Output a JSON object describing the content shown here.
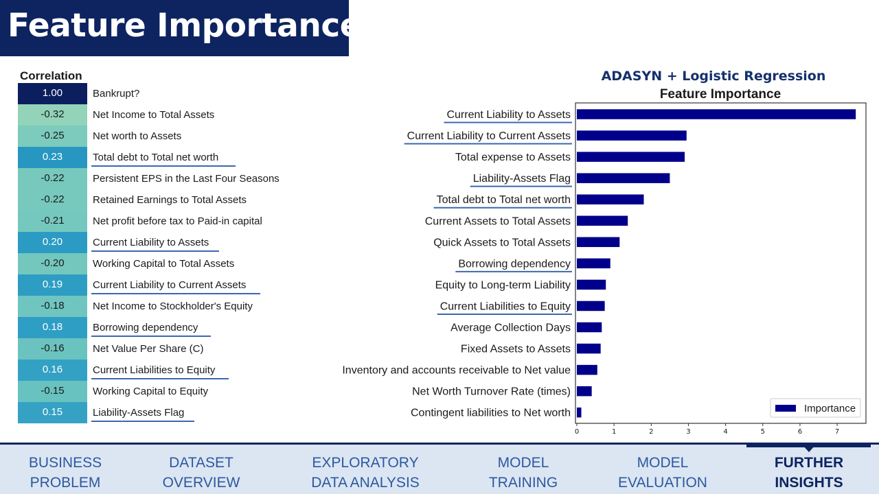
{
  "slide": {
    "title": "Feature Importance"
  },
  "correlation": {
    "header": "Correlation",
    "rows": [
      {
        "value": "1.00",
        "label": "Bankrupt?",
        "underlined": false,
        "color": "#0b1f5e",
        "text_color": "#ffffff"
      },
      {
        "value": "-0.32",
        "label": "Net Income to Total Assets",
        "underlined": false,
        "color": "#92d3b9",
        "text_color": "#1a1a1a"
      },
      {
        "value": "-0.25",
        "label": "Net worth to Assets",
        "underlined": false,
        "color": "#7ccbbc",
        "text_color": "#1a1a1a"
      },
      {
        "value": "0.23",
        "label": "Total debt to Total net worth",
        "underlined": true,
        "color": "#2797c1",
        "text_color": "#ffffff"
      },
      {
        "value": "-0.22",
        "label": "Persistent EPS in the Last Four Seasons",
        "underlined": false,
        "color": "#77c9bd",
        "text_color": "#1a1a1a"
      },
      {
        "value": "-0.22",
        "label": "Retained Earnings to Total Assets",
        "underlined": false,
        "color": "#77c9bd",
        "text_color": "#1a1a1a"
      },
      {
        "value": "-0.21",
        "label": "Net profit before tax to Paid-in capital",
        "underlined": false,
        "color": "#75c8bd",
        "text_color": "#1a1a1a"
      },
      {
        "value": "0.20",
        "label": "Current Liability to Assets",
        "underlined": true,
        "color": "#2b9bc3",
        "text_color": "#ffffff"
      },
      {
        "value": "-0.20",
        "label": "Working Capital to Total Assets",
        "underlined": false,
        "color": "#73c7bd",
        "text_color": "#1a1a1a"
      },
      {
        "value": "0.19",
        "label": "Current Liability to Current Assets",
        "underlined": true,
        "color": "#2d9dc3",
        "text_color": "#ffffff"
      },
      {
        "value": "-0.18",
        "label": "Net Income to Stockholder's Equity",
        "underlined": false,
        "color": "#6fc5bf",
        "text_color": "#1a1a1a"
      },
      {
        "value": "0.18",
        "label": "Borrowing dependency",
        "underlined": true,
        "color": "#2f9ec4",
        "text_color": "#ffffff"
      },
      {
        "value": "-0.16",
        "label": "Net Value Per Share (C)",
        "underlined": false,
        "color": "#6bc3bf",
        "text_color": "#1a1a1a"
      },
      {
        "value": "0.16",
        "label": "Current Liabilities to Equity",
        "underlined": true,
        "color": "#33a1c4",
        "text_color": "#ffffff"
      },
      {
        "value": "-0.15",
        "label": "Working Capital to Equity",
        "underlined": false,
        "color": "#68c2c0",
        "text_color": "#1a1a1a"
      },
      {
        "value": "0.15",
        "label": "Liability-Assets Flag",
        "underlined": true,
        "color": "#35a2c4",
        "text_color": "#ffffff"
      }
    ]
  },
  "chart_data": {
    "type": "bar",
    "orientation": "horizontal",
    "title": "ADASYN + Logistic Regression",
    "subtitle": "Feature Importance",
    "categories": [
      "Current Liability to Assets",
      "Current Liability to Current Assets",
      "Total expense to Assets",
      "Liability-Assets Flag",
      "Total debt to Total net worth",
      "Current Assets to Total Assets",
      "Quick Assets to Total Assets",
      "Borrowing dependency",
      "Equity to Long-term Liability",
      "Current Liabilities to Equity",
      "Average Collection Days",
      "Fixed Assets to Assets",
      "Inventory and accounts receivable to Net value",
      "Net Worth Turnover Rate (times)",
      "Contingent liabilities to Net worth"
    ],
    "underlined_categories": [
      "Current Liability to Assets",
      "Current Liability to Current Assets",
      "Liability-Assets Flag",
      "Total debt to Total net worth",
      "Borrowing dependency",
      "Current Liabilities to Equity"
    ],
    "series": [
      {
        "name": "Importance",
        "values": [
          7.5,
          2.95,
          2.9,
          2.5,
          1.8,
          1.37,
          1.15,
          0.9,
          0.78,
          0.75,
          0.67,
          0.64,
          0.55,
          0.4,
          0.12
        ],
        "color": "#00008b"
      }
    ],
    "xlim": [
      0,
      7.7
    ],
    "xticks": [
      0,
      1,
      2,
      3,
      4,
      5,
      6,
      7
    ],
    "legend_position": "lower-right",
    "grid": false
  },
  "nav": {
    "items": [
      {
        "line1": "BUSINESS",
        "line2": "PROBLEM",
        "active": false
      },
      {
        "line1": "DATASET",
        "line2": "OVERVIEW",
        "active": false
      },
      {
        "line1": "EXPLORATORY",
        "line2": "DATA ANALYSIS",
        "active": false
      },
      {
        "line1": "MODEL",
        "line2": "TRAINING",
        "active": false
      },
      {
        "line1": "MODEL",
        "line2": "EVALUATION",
        "active": false
      },
      {
        "line1": "FURTHER",
        "line2": "INSIGHTS",
        "active": true
      }
    ]
  },
  "colors": {
    "title_bar": "#0d2460",
    "nav_text": "#2d58a0",
    "nav_bg": "#dbe6f2",
    "underline": "#3b67b0"
  }
}
